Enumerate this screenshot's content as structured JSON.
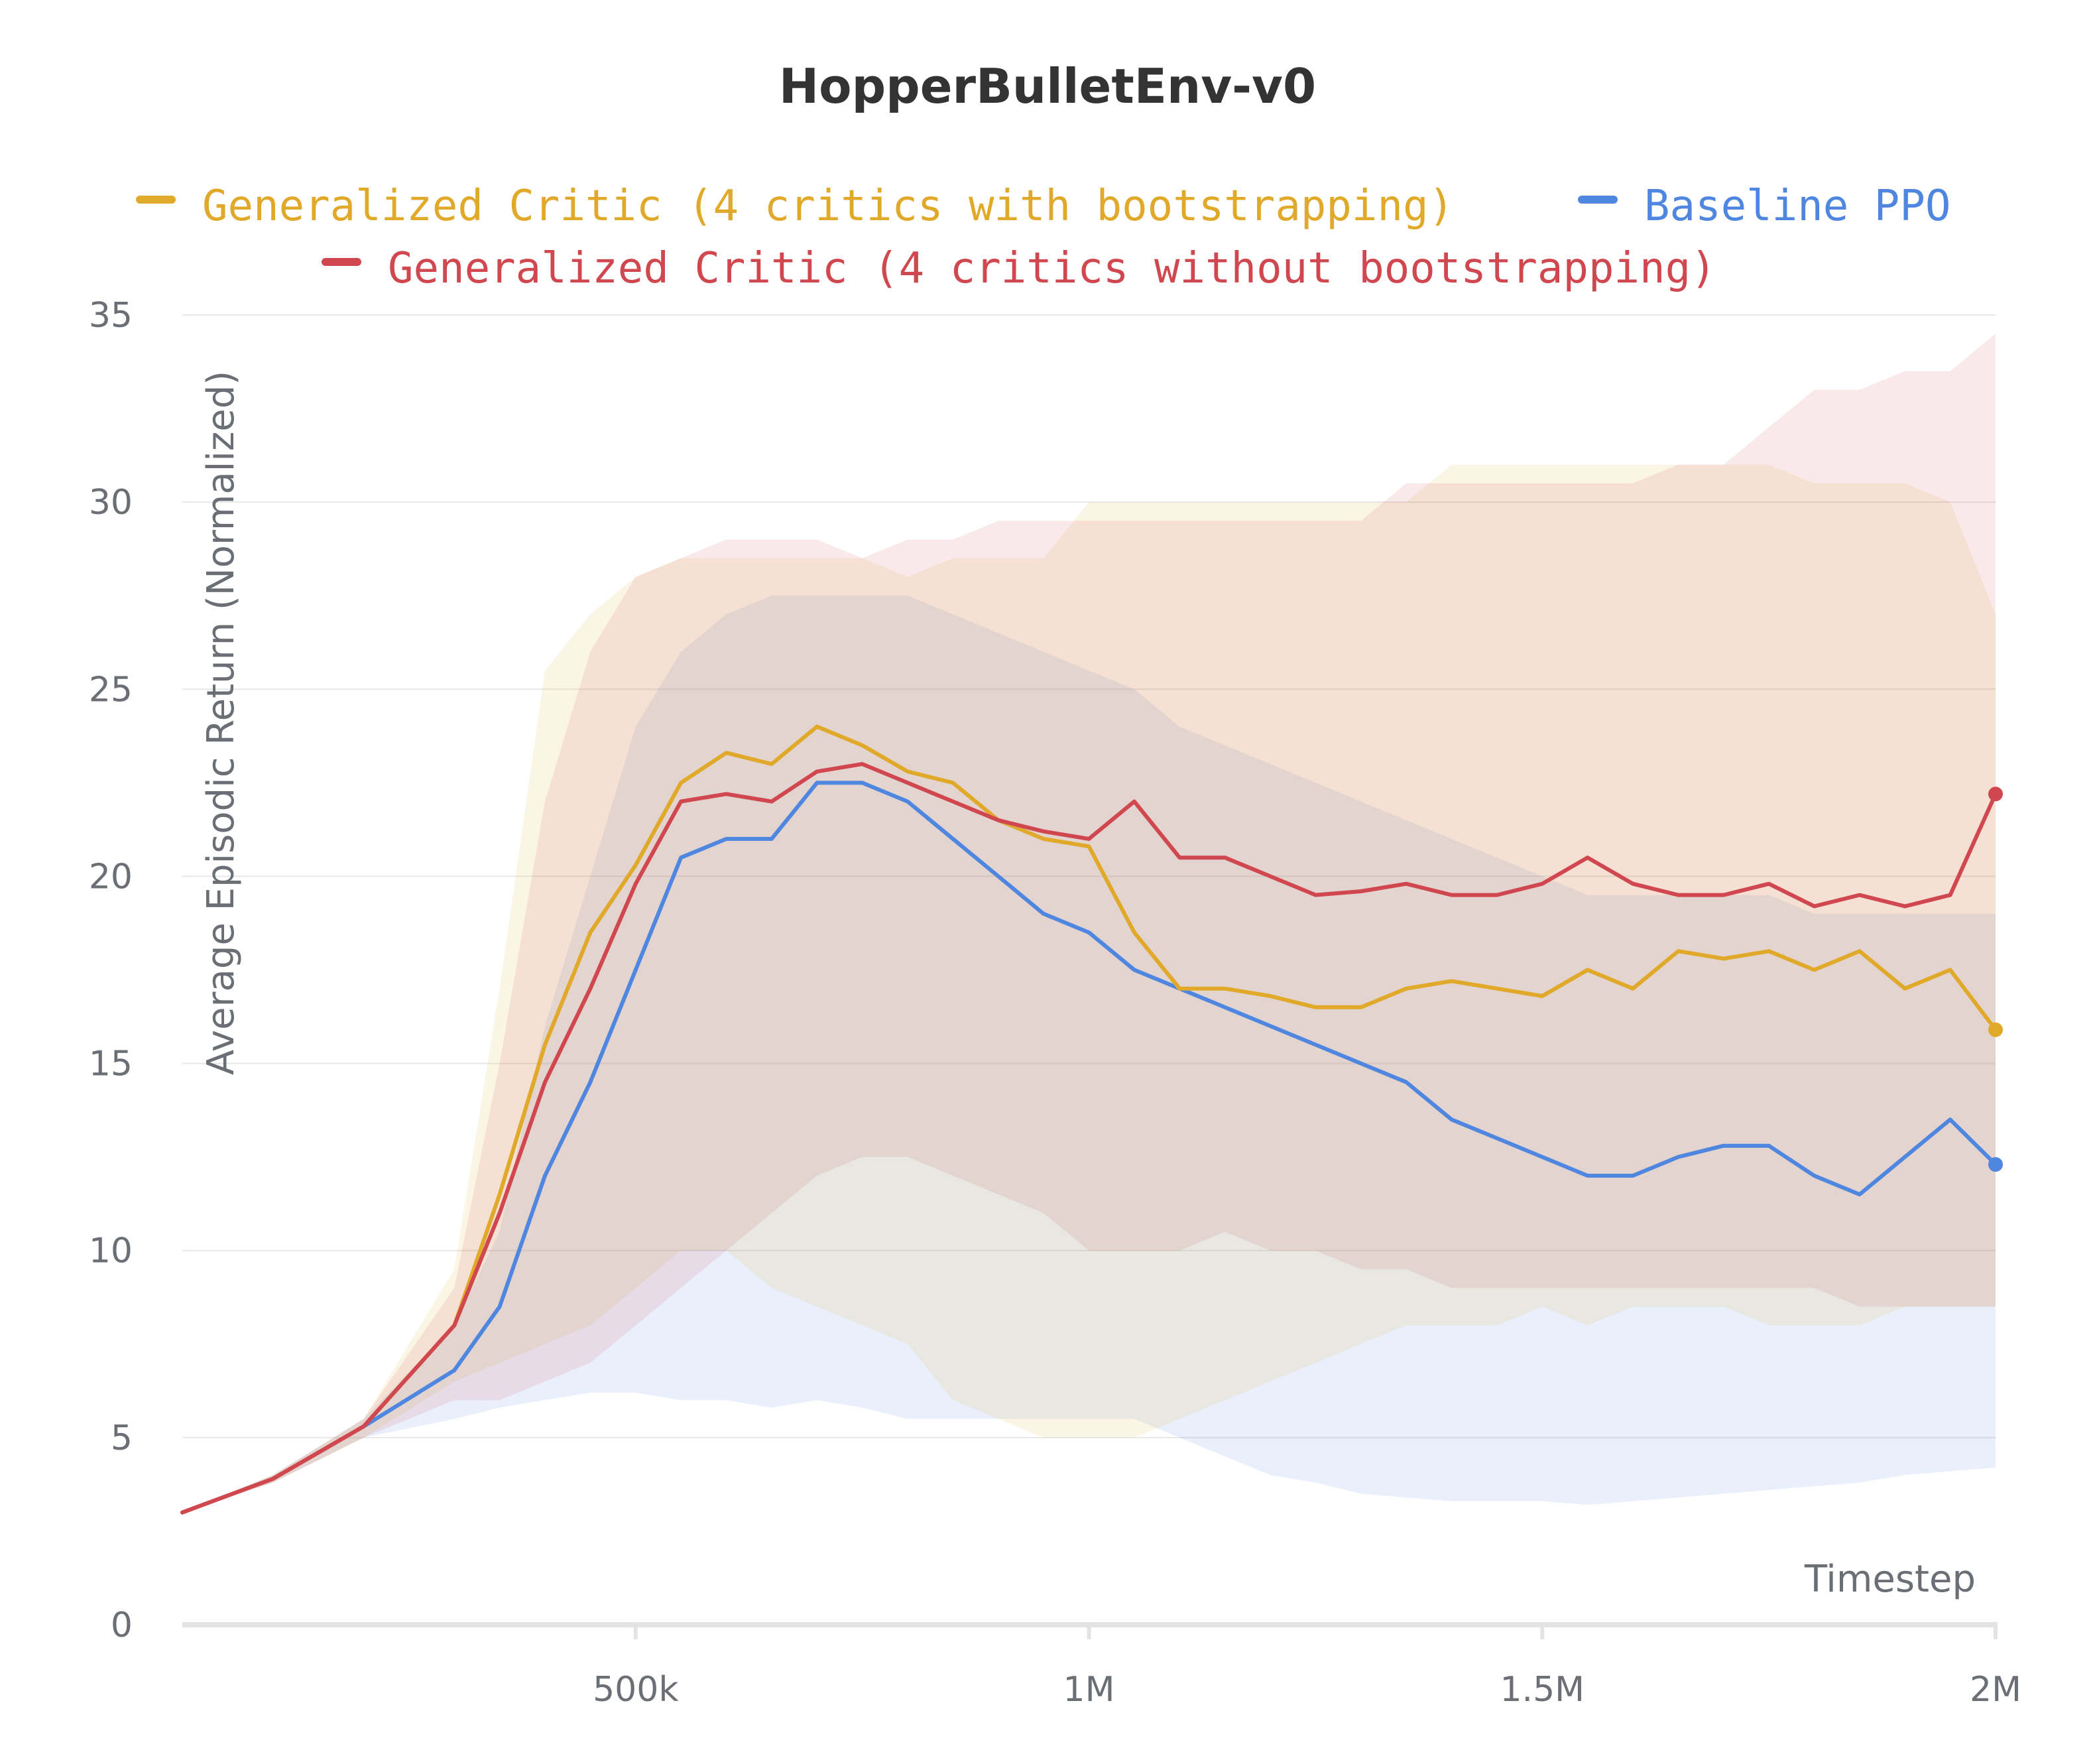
{
  "chart_data": {
    "type": "line",
    "title": "HopperBulletEnv-v0",
    "xlabel": "Timestep",
    "ylabel": "Average Episodic Return (Normalized)",
    "xlim": [
      0,
      2000000
    ],
    "ylim": [
      0,
      35
    ],
    "grid": true,
    "legend_position": "top",
    "x_ticks": [
      {
        "value": 500000,
        "label": "500k"
      },
      {
        "value": 1000000,
        "label": "1M"
      },
      {
        "value": 1500000,
        "label": "1.5M"
      },
      {
        "value": 2000000,
        "label": "2M"
      }
    ],
    "y_ticks": [
      {
        "value": 0,
        "label": "0"
      },
      {
        "value": 5,
        "label": "5"
      },
      {
        "value": 10,
        "label": "10"
      },
      {
        "value": 15,
        "label": "15"
      },
      {
        "value": 20,
        "label": "20"
      },
      {
        "value": 25,
        "label": "25"
      },
      {
        "value": 30,
        "label": "30"
      },
      {
        "value": 35,
        "label": "35"
      }
    ],
    "x": [
      0,
      100000,
      200000,
      300000,
      350000,
      400000,
      450000,
      500000,
      550000,
      600000,
      650000,
      700000,
      750000,
      800000,
      850000,
      900000,
      950000,
      1000000,
      1050000,
      1100000,
      1150000,
      1200000,
      1250000,
      1300000,
      1350000,
      1400000,
      1450000,
      1500000,
      1550000,
      1600000,
      1650000,
      1700000,
      1750000,
      1800000,
      1850000,
      1900000,
      1950000,
      2000000
    ],
    "series": [
      {
        "name": "Generalized Critic (4 critics with bootstrapping)",
        "color": "#e0a92a",
        "values": [
          3.0,
          3.9,
          5.3,
          8.0,
          11.5,
          15.5,
          18.5,
          20.3,
          22.5,
          23.3,
          23.0,
          24.0,
          23.5,
          22.8,
          22.5,
          21.5,
          21.0,
          20.8,
          18.5,
          17.0,
          17.0,
          16.8,
          16.5,
          16.5,
          17.0,
          17.2,
          17.0,
          16.8,
          17.5,
          17.0,
          18.0,
          17.8,
          18.0,
          17.5,
          18.0,
          17.0,
          17.5,
          15.9
        ],
        "upper": [
          3.0,
          4.0,
          5.5,
          9.5,
          17.0,
          25.5,
          27.0,
          28.0,
          28.5,
          28.5,
          28.5,
          28.5,
          28.5,
          28.0,
          28.5,
          28.5,
          28.5,
          30.0,
          30.0,
          30.0,
          30.0,
          30.0,
          30.0,
          30.0,
          30.0,
          31.0,
          31.0,
          31.0,
          31.0,
          31.0,
          31.0,
          31.0,
          31.0,
          30.5,
          30.5,
          30.5,
          30.0,
          27.0
        ],
        "lower": [
          3.0,
          3.8,
          5.0,
          6.5,
          7.0,
          7.5,
          8.0,
          9.0,
          10.0,
          10.0,
          9.0,
          8.5,
          8.0,
          7.5,
          6.0,
          5.5,
          5.0,
          5.0,
          5.0,
          5.5,
          6.0,
          6.5,
          7.0,
          7.5,
          8.0,
          8.0,
          8.0,
          8.5,
          8.0,
          8.5,
          8.5,
          8.5,
          8.0,
          8.0,
          8.0,
          8.5,
          8.5,
          8.5
        ]
      },
      {
        "name": "Generalized Critic (4 critics without bootstrapping)",
        "color": "#d0474f",
        "values": [
          3.0,
          3.9,
          5.3,
          8.0,
          11.0,
          14.5,
          17.0,
          19.8,
          22.0,
          22.2,
          22.0,
          22.8,
          23.0,
          22.5,
          22.0,
          21.5,
          21.2,
          21.0,
          22.0,
          20.5,
          20.5,
          20.0,
          19.5,
          19.6,
          19.8,
          19.5,
          19.5,
          19.8,
          20.5,
          19.8,
          19.5,
          19.5,
          19.8,
          19.2,
          19.5,
          19.2,
          19.5,
          22.2
        ],
        "upper": [
          3.0,
          4.0,
          5.5,
          9.0,
          15.0,
          22.0,
          26.0,
          28.0,
          28.5,
          29.0,
          29.0,
          29.0,
          28.5,
          29.0,
          29.0,
          29.5,
          29.5,
          29.5,
          29.5,
          29.5,
          29.5,
          29.5,
          29.5,
          29.5,
          30.5,
          30.5,
          30.5,
          30.5,
          30.5,
          30.5,
          31.0,
          31.0,
          32.0,
          33.0,
          33.0,
          33.5,
          33.5,
          34.5
        ],
        "lower": [
          3.0,
          3.8,
          5.0,
          6.0,
          6.0,
          6.5,
          7.0,
          8.0,
          9.0,
          10.0,
          11.0,
          12.0,
          12.5,
          12.5,
          12.0,
          11.5,
          11.0,
          10.0,
          10.0,
          10.0,
          10.5,
          10.0,
          10.0,
          9.5,
          9.5,
          9.0,
          9.0,
          9.0,
          9.0,
          9.0,
          9.0,
          9.0,
          9.0,
          9.0,
          8.5,
          8.5,
          8.5,
          8.5
        ]
      },
      {
        "name": "Baseline PPO",
        "color": "#4f86e0",
        "values": [
          3.0,
          3.9,
          5.3,
          6.8,
          8.5,
          12.0,
          14.5,
          17.5,
          20.5,
          21.0,
          21.0,
          22.5,
          22.5,
          22.0,
          21.0,
          20.0,
          19.0,
          18.5,
          17.5,
          17.0,
          16.5,
          16.0,
          15.5,
          15.0,
          14.5,
          13.5,
          13.0,
          12.5,
          12.0,
          12.0,
          12.5,
          12.8,
          12.8,
          12.0,
          11.5,
          12.5,
          13.5,
          12.3
        ],
        "upper": [
          3.0,
          4.0,
          5.5,
          8.0,
          10.5,
          16.0,
          20.0,
          24.0,
          26.0,
          27.0,
          27.5,
          27.5,
          27.5,
          27.5,
          27.0,
          26.5,
          26.0,
          25.5,
          25.0,
          24.0,
          23.5,
          23.0,
          22.5,
          22.0,
          21.5,
          21.0,
          20.5,
          20.0,
          19.5,
          19.5,
          19.5,
          19.5,
          19.5,
          19.0,
          19.0,
          19.0,
          19.0,
          19.0
        ],
        "lower": [
          3.0,
          3.8,
          5.0,
          5.5,
          5.8,
          6.0,
          6.2,
          6.2,
          6.0,
          6.0,
          5.8,
          6.0,
          5.8,
          5.5,
          5.5,
          5.5,
          5.5,
          5.5,
          5.5,
          5.0,
          4.5,
          4.0,
          3.8,
          3.5,
          3.4,
          3.3,
          3.3,
          3.3,
          3.2,
          3.3,
          3.4,
          3.5,
          3.6,
          3.7,
          3.8,
          4.0,
          4.1,
          4.2
        ]
      }
    ]
  }
}
